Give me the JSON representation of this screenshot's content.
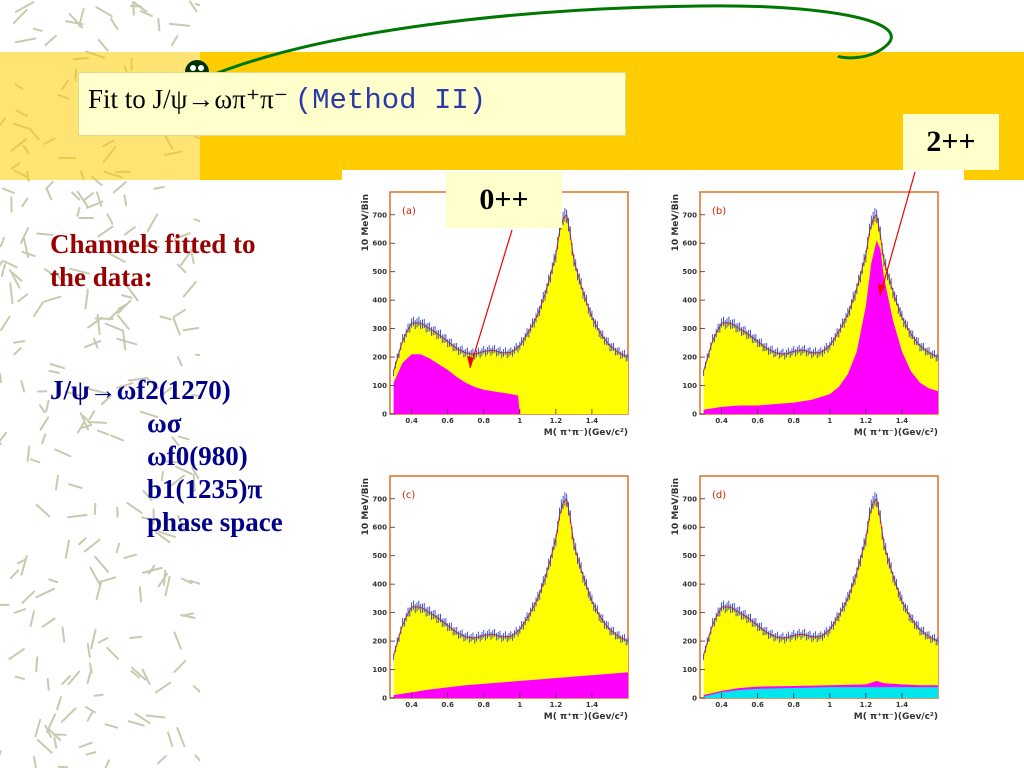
{
  "title": {
    "prefix": "Fit to J/ψ→ωπ⁺π⁻ ",
    "method": "(Method II)"
  },
  "callouts": {
    "zero_pp": "0++",
    "two_pp": "2++"
  },
  "left_panel": {
    "heading_line1": "Channels fitted to",
    "heading_line2": "the data:",
    "channels": [
      "J/ψ→ωf2(1270)",
      "ωσ",
      "ωf0(980)",
      "b1(1235)π",
      "phase space"
    ]
  },
  "colors": {
    "banner": "#ffcc00",
    "data_fill": "#ffff00",
    "component_fill": "#ff00ff",
    "extra_component_fill": "#00e5ee",
    "data_points": "#3344cc",
    "fit_curve": "#ff2200",
    "heading": "#990000",
    "channels_text": "#00008b"
  },
  "chart_data": [
    {
      "type": "area",
      "panel_label": "(a)",
      "xlabel": "M( π⁺π⁻)(Gev/c²)",
      "ylabel": "10 MeV/Bin",
      "xlim": [
        0.28,
        1.6
      ],
      "ylim": [
        0,
        780
      ],
      "xticks": [
        "0.4",
        "0.6",
        "0.8",
        "1",
        "1.2",
        "1.4"
      ],
      "yticks": [
        "0",
        "100",
        "200",
        "300",
        "400",
        "500",
        "600",
        "700"
      ],
      "series": [
        {
          "kind": "data",
          "x": [
            0.3,
            0.35,
            0.4,
            0.45,
            0.5,
            0.55,
            0.6,
            0.65,
            0.7,
            0.75,
            0.8,
            0.85,
            0.9,
            0.95,
            1.0,
            1.05,
            1.1,
            1.15,
            1.2,
            1.23,
            1.26,
            1.28,
            1.3,
            1.35,
            1.4,
            1.45,
            1.5,
            1.55,
            1.6
          ],
          "y": [
            150,
            260,
            320,
            320,
            300,
            280,
            255,
            230,
            215,
            210,
            220,
            225,
            215,
            215,
            240,
            290,
            350,
            440,
            560,
            680,
            700,
            630,
            540,
            430,
            340,
            280,
            240,
            215,
            200
          ]
        },
        {
          "kind": "component",
          "name": "0++",
          "x": [
            0.3,
            0.35,
            0.4,
            0.45,
            0.5,
            0.55,
            0.6,
            0.65,
            0.7,
            0.75,
            0.8,
            0.85,
            0.9,
            0.95,
            0.99,
            1.0,
            1.6
          ],
          "y": [
            110,
            180,
            210,
            210,
            195,
            175,
            155,
            130,
            110,
            95,
            85,
            80,
            75,
            70,
            65,
            0,
            0
          ]
        }
      ]
    },
    {
      "type": "area",
      "panel_label": "(b)",
      "xlabel": "M( π⁺π⁻)(Gev/c²)",
      "ylabel": "10 MeV/Bin",
      "xlim": [
        0.28,
        1.6
      ],
      "ylim": [
        0,
        780
      ],
      "xticks": [
        "0.4",
        "0.6",
        "0.8",
        "1",
        "1.2",
        "1.4"
      ],
      "yticks": [
        "0",
        "100",
        "200",
        "300",
        "400",
        "500",
        "600",
        "700"
      ],
      "series": [
        {
          "kind": "data",
          "x": [
            0.3,
            0.35,
            0.4,
            0.45,
            0.5,
            0.55,
            0.6,
            0.65,
            0.7,
            0.75,
            0.8,
            0.85,
            0.9,
            0.95,
            1.0,
            1.05,
            1.1,
            1.15,
            1.2,
            1.23,
            1.26,
            1.28,
            1.3,
            1.35,
            1.4,
            1.45,
            1.5,
            1.55,
            1.6
          ],
          "y": [
            150,
            260,
            320,
            320,
            300,
            280,
            255,
            230,
            215,
            210,
            220,
            225,
            215,
            215,
            240,
            290,
            350,
            440,
            560,
            680,
            700,
            630,
            540,
            430,
            340,
            280,
            240,
            215,
            200
          ]
        },
        {
          "kind": "component",
          "name": "2++",
          "x": [
            0.3,
            0.4,
            0.5,
            0.6,
            0.7,
            0.8,
            0.9,
            1.0,
            1.05,
            1.1,
            1.15,
            1.2,
            1.23,
            1.26,
            1.28,
            1.3,
            1.35,
            1.4,
            1.45,
            1.5,
            1.55,
            1.6
          ],
          "y": [
            15,
            25,
            30,
            30,
            35,
            40,
            50,
            70,
            95,
            140,
            220,
            380,
            530,
            610,
            580,
            480,
            330,
            220,
            150,
            110,
            90,
            80
          ]
        }
      ]
    },
    {
      "type": "area",
      "panel_label": "(c)",
      "xlabel": "M( π⁺π⁻)(Gev/c²)",
      "ylabel": "10 MeV/Bin",
      "xlim": [
        0.28,
        1.6
      ],
      "ylim": [
        0,
        780
      ],
      "xticks": [
        "0.4",
        "0.6",
        "0.8",
        "1",
        "1.2",
        "1.4"
      ],
      "yticks": [
        "0",
        "100",
        "200",
        "300",
        "400",
        "500",
        "600",
        "700"
      ],
      "series": [
        {
          "kind": "data",
          "x": [
            0.3,
            0.35,
            0.4,
            0.45,
            0.5,
            0.55,
            0.6,
            0.65,
            0.7,
            0.75,
            0.8,
            0.85,
            0.9,
            0.95,
            1.0,
            1.05,
            1.1,
            1.15,
            1.2,
            1.23,
            1.26,
            1.28,
            1.3,
            1.35,
            1.4,
            1.45,
            1.5,
            1.55,
            1.6
          ],
          "y": [
            150,
            260,
            320,
            320,
            300,
            280,
            255,
            230,
            215,
            210,
            220,
            225,
            215,
            215,
            240,
            290,
            350,
            440,
            560,
            680,
            700,
            630,
            540,
            430,
            340,
            280,
            240,
            215,
            200
          ]
        },
        {
          "kind": "component",
          "name": "",
          "x": [
            0.3,
            0.5,
            0.7,
            0.9,
            1.1,
            1.3,
            1.5,
            1.6
          ],
          "y": [
            10,
            30,
            45,
            55,
            65,
            75,
            85,
            90
          ]
        }
      ]
    },
    {
      "type": "area",
      "panel_label": "(d)",
      "xlabel": "M( π⁺π⁻)(Gev/c²)",
      "ylabel": "10 MeV/Bin",
      "xlim": [
        0.28,
        1.6
      ],
      "ylim": [
        0,
        780
      ],
      "xticks": [
        "0.4",
        "0.6",
        "0.8",
        "1",
        "1.2",
        "1.4"
      ],
      "yticks": [
        "0",
        "100",
        "200",
        "300",
        "400",
        "500",
        "600",
        "700"
      ],
      "series": [
        {
          "kind": "data",
          "x": [
            0.3,
            0.35,
            0.4,
            0.45,
            0.5,
            0.55,
            0.6,
            0.65,
            0.7,
            0.75,
            0.8,
            0.85,
            0.9,
            0.95,
            1.0,
            1.05,
            1.1,
            1.15,
            1.2,
            1.23,
            1.26,
            1.28,
            1.3,
            1.35,
            1.4,
            1.45,
            1.5,
            1.55,
            1.6
          ],
          "y": [
            150,
            260,
            320,
            320,
            300,
            280,
            255,
            230,
            215,
            210,
            220,
            225,
            215,
            215,
            240,
            290,
            350,
            440,
            560,
            680,
            700,
            630,
            540,
            430,
            340,
            280,
            240,
            215,
            200
          ]
        },
        {
          "kind": "component",
          "name": "",
          "x": [
            0.3,
            0.4,
            0.5,
            0.6,
            0.8,
            1.0,
            1.2,
            1.26,
            1.3,
            1.4,
            1.5,
            1.6
          ],
          "y": [
            10,
            25,
            35,
            40,
            42,
            45,
            48,
            60,
            52,
            48,
            45,
            45
          ]
        },
        {
          "kind": "component",
          "name": "",
          "x": [
            0.3,
            0.4,
            0.5,
            0.6,
            0.8,
            1.0,
            1.2,
            1.4,
            1.6
          ],
          "y": [
            5,
            20,
            28,
            32,
            35,
            38,
            38,
            38,
            38
          ]
        }
      ]
    }
  ]
}
